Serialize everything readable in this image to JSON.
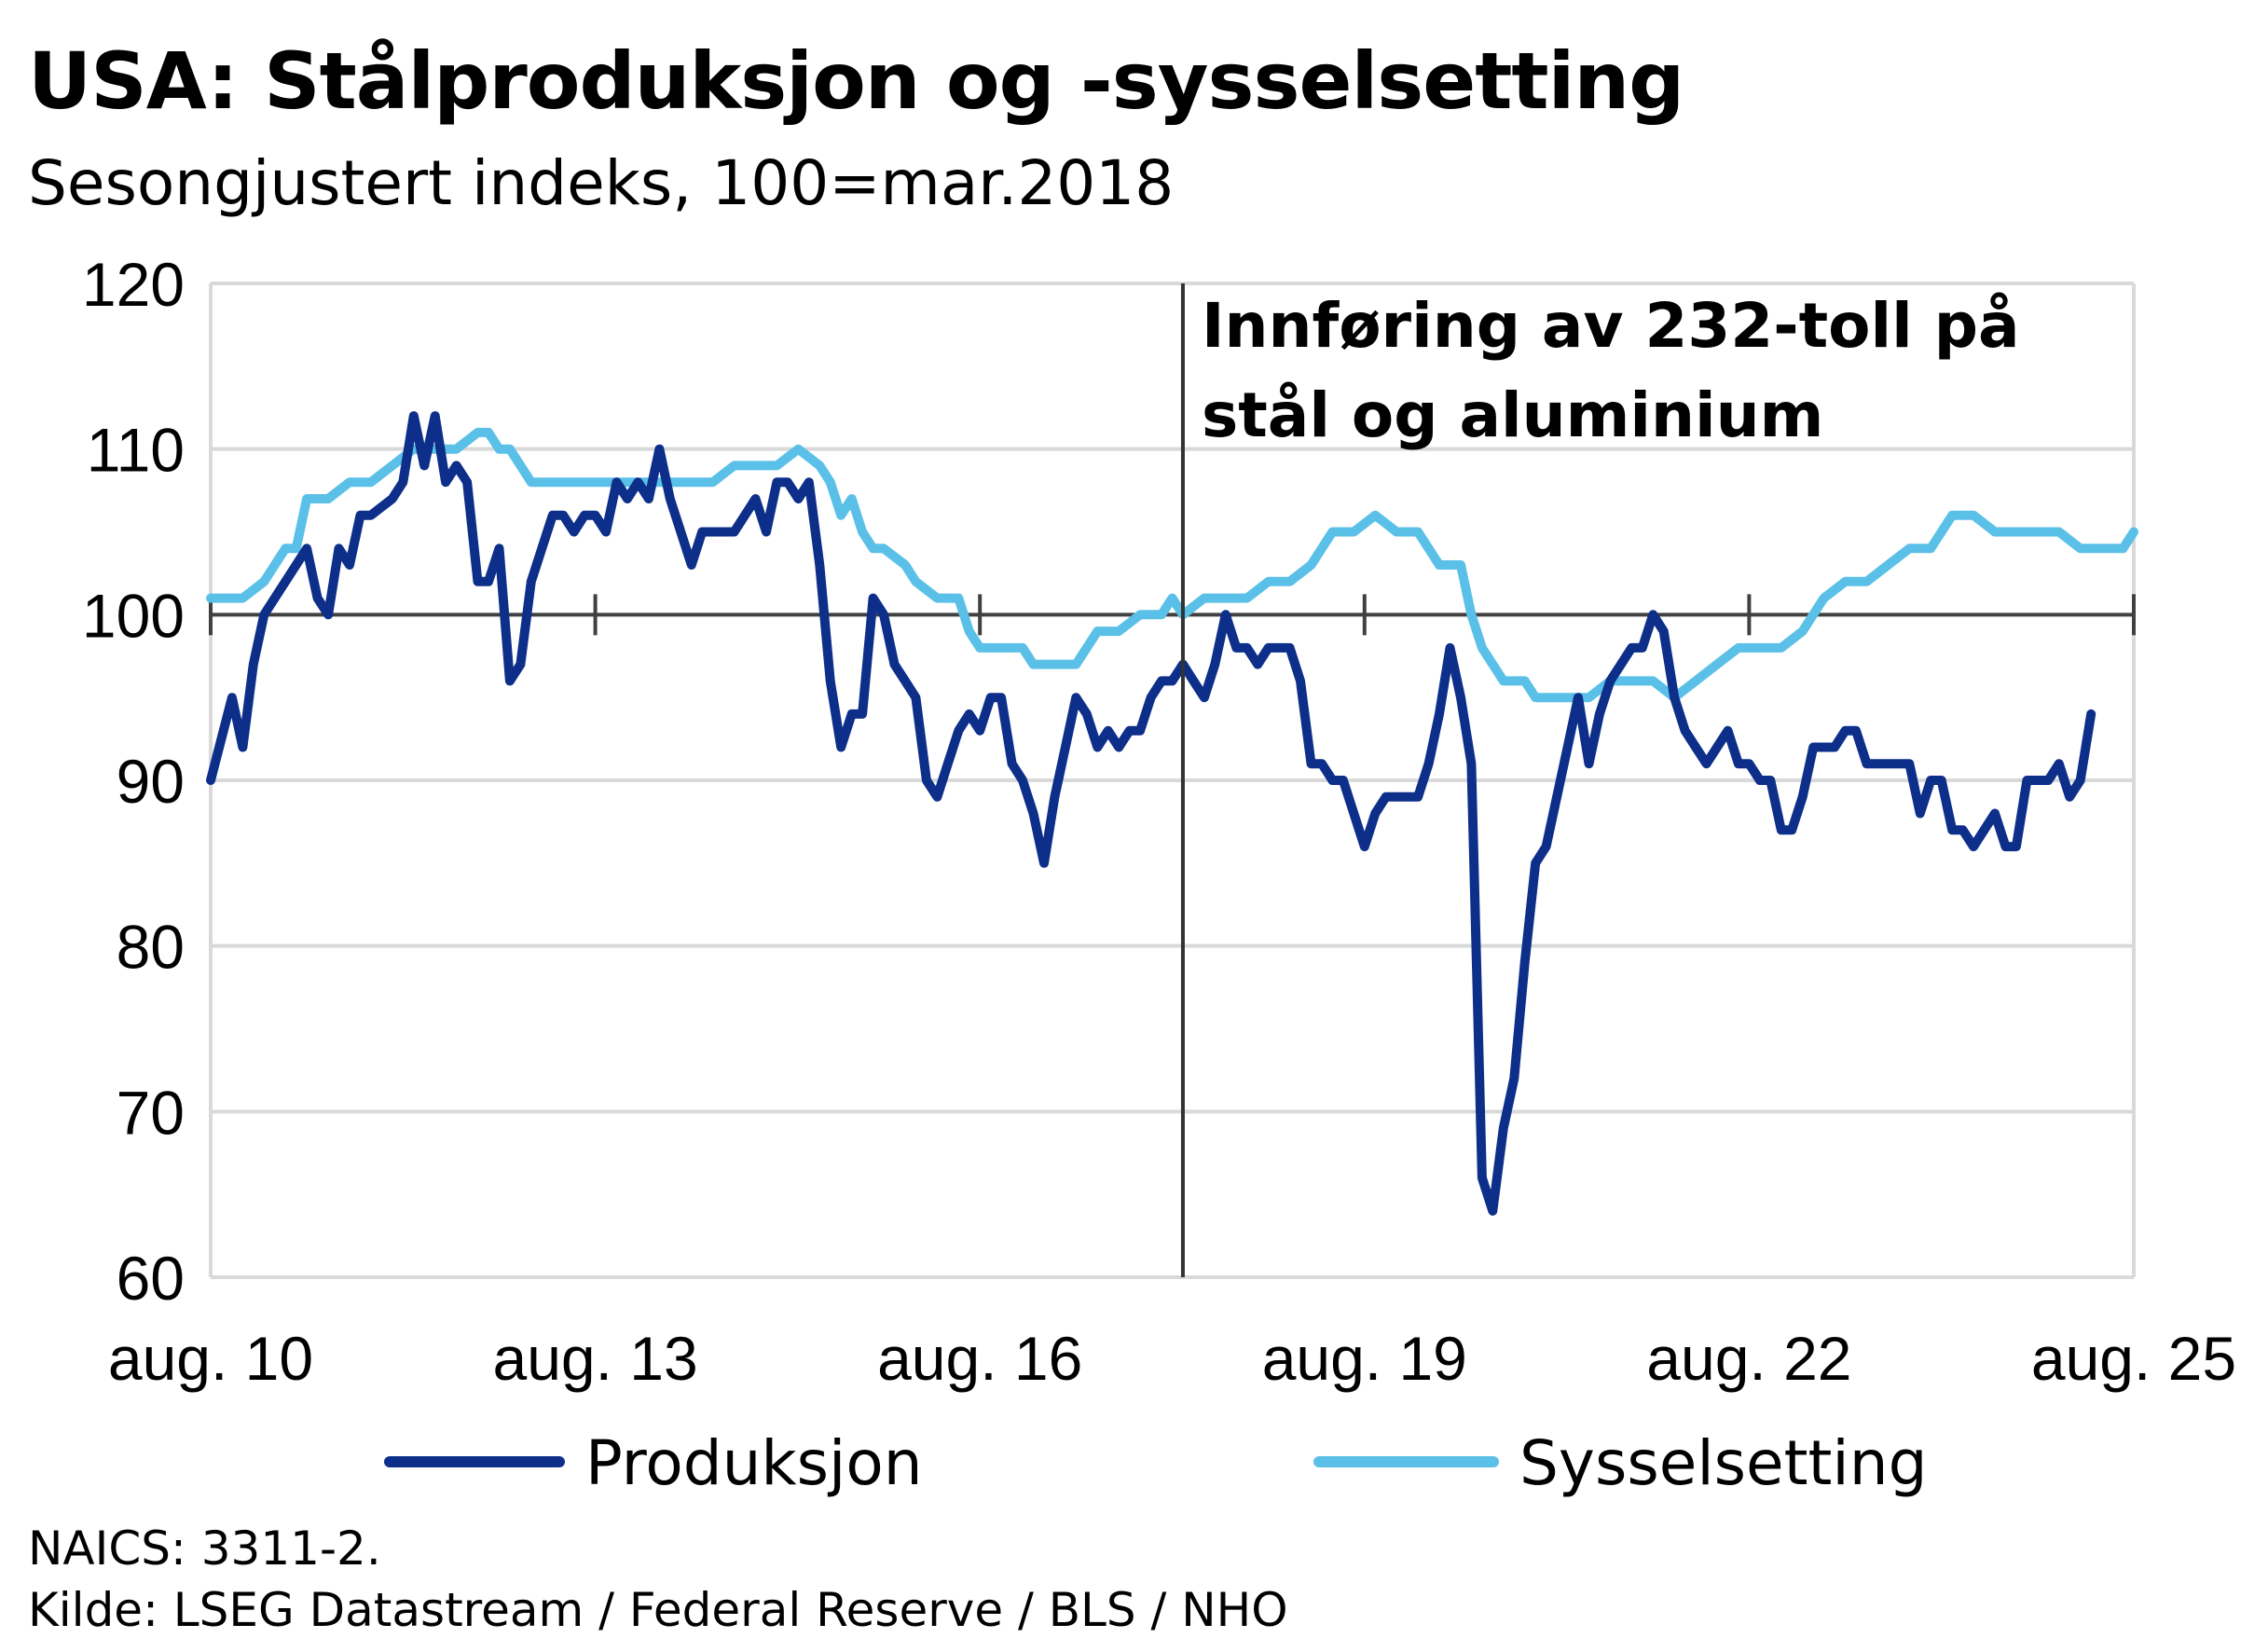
{
  "title": "USA:  Stålproduksjon  og  -sysselsetting",
  "subtitle": "Sesongjustert indeks, 100=mar.2018",
  "footnote": "NAICS: 3311-2.",
  "source": "Kilde: LSEG Datastream / Federal Reserve / BLS / NHO",
  "colors": {
    "produksjon": "#0d2f8a",
    "sysselsetting": "#5bc0e8",
    "grid": "#d9d9d9",
    "axis": "#404040"
  },
  "chart_data": {
    "type": "line",
    "title": "USA:  Stålproduksjon  og  -sysselsetting",
    "subtitle": "Sesongjustert indeks, 100=mar.2018",
    "ylim": [
      60,
      120
    ],
    "yticks": [
      60,
      70,
      80,
      90,
      100,
      110,
      120
    ],
    "xlim": [
      "2010-08",
      "2025-08"
    ],
    "xticks": [
      {
        "date": "2010-08",
        "label": "aug. 10"
      },
      {
        "date": "2013-08",
        "label": "aug. 13"
      },
      {
        "date": "2016-08",
        "label": "aug. 16"
      },
      {
        "date": "2019-08",
        "label": "aug. 19"
      },
      {
        "date": "2022-08",
        "label": "aug. 22"
      },
      {
        "date": "2025-08",
        "label": "aug. 25"
      }
    ],
    "grid": true,
    "legend_position": "bottom",
    "annotation": {
      "date": "2018-03",
      "lines": [
        "Innføring av 232-toll på",
        "stål og aluminium"
      ]
    },
    "series": [
      {
        "name": "Produksjon",
        "color": "#0d2f8a",
        "points": [
          [
            "2010-08",
            90
          ],
          [
            "2010-10",
            95
          ],
          [
            "2010-11",
            92
          ],
          [
            "2010-12",
            97
          ],
          [
            "2011-01",
            100
          ],
          [
            "2011-03",
            102
          ],
          [
            "2011-05",
            104
          ],
          [
            "2011-06",
            101
          ],
          [
            "2011-07",
            100
          ],
          [
            "2011-08",
            104
          ],
          [
            "2011-09",
            103
          ],
          [
            "2011-10",
            106
          ],
          [
            "2011-11",
            106
          ],
          [
            "2012-01",
            107
          ],
          [
            "2012-02",
            108
          ],
          [
            "2012-03",
            112
          ],
          [
            "2012-04",
            109
          ],
          [
            "2012-05",
            112
          ],
          [
            "2012-06",
            108
          ],
          [
            "2012-07",
            109
          ],
          [
            "2012-08",
            108
          ],
          [
            "2012-09",
            102
          ],
          [
            "2012-10",
            102
          ],
          [
            "2012-11",
            104
          ],
          [
            "2012-12",
            96
          ],
          [
            "2013-01",
            97
          ],
          [
            "2013-02",
            102
          ],
          [
            "2013-04",
            106
          ],
          [
            "2013-05",
            106
          ],
          [
            "2013-06",
            105
          ],
          [
            "2013-07",
            106
          ],
          [
            "2013-08",
            106
          ],
          [
            "2013-09",
            105
          ],
          [
            "2013-10",
            108
          ],
          [
            "2013-11",
            107
          ],
          [
            "2013-12",
            108
          ],
          [
            "2014-01",
            107
          ],
          [
            "2014-02",
            110
          ],
          [
            "2014-03",
            107
          ],
          [
            "2014-05",
            103
          ],
          [
            "2014-06",
            105
          ],
          [
            "2014-07",
            105
          ],
          [
            "2014-08",
            105
          ],
          [
            "2014-09",
            105
          ],
          [
            "2014-10",
            106
          ],
          [
            "2014-11",
            107
          ],
          [
            "2014-12",
            105
          ],
          [
            "2015-01",
            108
          ],
          [
            "2015-02",
            108
          ],
          [
            "2015-03",
            107
          ],
          [
            "2015-04",
            108
          ],
          [
            "2015-05",
            103
          ],
          [
            "2015-06",
            96
          ],
          [
            "2015-07",
            92
          ],
          [
            "2015-08",
            94
          ],
          [
            "2015-09",
            94
          ],
          [
            "2015-10",
            101
          ],
          [
            "2015-11",
            100
          ],
          [
            "2015-12",
            97
          ],
          [
            "2016-01",
            96
          ],
          [
            "2016-02",
            95
          ],
          [
            "2016-03",
            90
          ],
          [
            "2016-04",
            89
          ],
          [
            "2016-05",
            91
          ],
          [
            "2016-06",
            93
          ],
          [
            "2016-07",
            94
          ],
          [
            "2016-08",
            93
          ],
          [
            "2016-09",
            95
          ],
          [
            "2016-10",
            95
          ],
          [
            "2016-11",
            91
          ],
          [
            "2016-12",
            90
          ],
          [
            "2017-01",
            88
          ],
          [
            "2017-02",
            85
          ],
          [
            "2017-03",
            89
          ],
          [
            "2017-04",
            92
          ],
          [
            "2017-05",
            95
          ],
          [
            "2017-06",
            94
          ],
          [
            "2017-07",
            92
          ],
          [
            "2017-08",
            93
          ],
          [
            "2017-09",
            92
          ],
          [
            "2017-10",
            93
          ],
          [
            "2017-11",
            93
          ],
          [
            "2017-12",
            95
          ],
          [
            "2018-01",
            96
          ],
          [
            "2018-02",
            96
          ],
          [
            "2018-03",
            97
          ],
          [
            "2018-04",
            96
          ],
          [
            "2018-05",
            95
          ],
          [
            "2018-06",
            97
          ],
          [
            "2018-07",
            100
          ],
          [
            "2018-08",
            98
          ],
          [
            "2018-09",
            98
          ],
          [
            "2018-10",
            97
          ],
          [
            "2018-11",
            98
          ],
          [
            "2018-12",
            98
          ],
          [
            "2019-01",
            98
          ],
          [
            "2019-02",
            96
          ],
          [
            "2019-03",
            91
          ],
          [
            "2019-04",
            91
          ],
          [
            "2019-05",
            90
          ],
          [
            "2019-06",
            90
          ],
          [
            "2019-07",
            88
          ],
          [
            "2019-08",
            86
          ],
          [
            "2019-09",
            88
          ],
          [
            "2019-10",
            89
          ],
          [
            "2019-11",
            89
          ],
          [
            "2019-12",
            89
          ],
          [
            "2020-01",
            89
          ],
          [
            "2020-02",
            91
          ],
          [
            "2020-03",
            94
          ],
          [
            "2020-04",
            98
          ],
          [
            "2020-05",
            95
          ],
          [
            "2020-06",
            91
          ],
          [
            "2020-07",
            66
          ],
          [
            "2020-08",
            64
          ],
          [
            "2020-09",
            69
          ],
          [
            "2020-10",
            72
          ],
          [
            "2020-11",
            79
          ],
          [
            "2020-12",
            85
          ],
          [
            "2021-01",
            86
          ],
          [
            "2021-02",
            89
          ],
          [
            "2021-03",
            92
          ],
          [
            "2021-04",
            95
          ],
          [
            "2021-05",
            91
          ],
          [
            "2021-06",
            94
          ],
          [
            "2021-07",
            96
          ],
          [
            "2021-08",
            97
          ],
          [
            "2021-09",
            98
          ],
          [
            "2021-10",
            98
          ],
          [
            "2021-11",
            100
          ],
          [
            "2021-12",
            99
          ],
          [
            "2022-01",
            95
          ],
          [
            "2022-02",
            93
          ],
          [
            "2022-03",
            92
          ],
          [
            "2022-04",
            91
          ],
          [
            "2022-05",
            92
          ],
          [
            "2022-06",
            93
          ],
          [
            "2022-07",
            91
          ],
          [
            "2022-08",
            91
          ],
          [
            "2022-09",
            90
          ],
          [
            "2022-10",
            90
          ],
          [
            "2022-11",
            87
          ],
          [
            "2022-12",
            87
          ],
          [
            "2023-01",
            89
          ],
          [
            "2023-02",
            92
          ],
          [
            "2023-03",
            92
          ],
          [
            "2023-04",
            92
          ],
          [
            "2023-05",
            93
          ],
          [
            "2023-06",
            93
          ],
          [
            "2023-07",
            91
          ],
          [
            "2023-08",
            91
          ],
          [
            "2023-09",
            91
          ],
          [
            "2023-10",
            91
          ],
          [
            "2023-11",
            91
          ],
          [
            "2023-12",
            88
          ],
          [
            "2024-01",
            90
          ],
          [
            "2024-02",
            90
          ],
          [
            "2024-03",
            87
          ],
          [
            "2024-04",
            87
          ],
          [
            "2024-05",
            86
          ],
          [
            "2024-06",
            87
          ],
          [
            "2024-07",
            88
          ],
          [
            "2024-08",
            86
          ],
          [
            "2024-09",
            86
          ],
          [
            "2024-10",
            90
          ],
          [
            "2024-11",
            90
          ],
          [
            "2024-12",
            90
          ],
          [
            "2025-01",
            91
          ],
          [
            "2025-02",
            89
          ],
          [
            "2025-03",
            90
          ],
          [
            "2025-04",
            94
          ]
        ]
      },
      {
        "name": "Sysselsetting",
        "color": "#5bc0e8",
        "points": [
          [
            "2010-08",
            101
          ],
          [
            "2010-09",
            101
          ],
          [
            "2010-11",
            101
          ],
          [
            "2011-01",
            102
          ],
          [
            "2011-03",
            104
          ],
          [
            "2011-04",
            104
          ],
          [
            "2011-05",
            107
          ],
          [
            "2011-07",
            107
          ],
          [
            "2011-09",
            108
          ],
          [
            "2011-11",
            108
          ],
          [
            "2012-01",
            109
          ],
          [
            "2012-03",
            110
          ],
          [
            "2012-05",
            110
          ],
          [
            "2012-07",
            110
          ],
          [
            "2012-09",
            111
          ],
          [
            "2012-10",
            111
          ],
          [
            "2012-11",
            110
          ],
          [
            "2012-12",
            110
          ],
          [
            "2013-01",
            109
          ],
          [
            "2013-02",
            108
          ],
          [
            "2013-03",
            108
          ],
          [
            "2013-05",
            108
          ],
          [
            "2013-07",
            108
          ],
          [
            "2013-09",
            108
          ],
          [
            "2013-11",
            108
          ],
          [
            "2014-01",
            108
          ],
          [
            "2014-03",
            108
          ],
          [
            "2014-05",
            108
          ],
          [
            "2014-07",
            108
          ],
          [
            "2014-09",
            109
          ],
          [
            "2014-11",
            109
          ],
          [
            "2015-01",
            109
          ],
          [
            "2015-03",
            110
          ],
          [
            "2015-05",
            109
          ],
          [
            "2015-06",
            108
          ],
          [
            "2015-07",
            106
          ],
          [
            "2015-08",
            107
          ],
          [
            "2015-09",
            105
          ],
          [
            "2015-10",
            104
          ],
          [
            "2015-11",
            104
          ],
          [
            "2016-01",
            103
          ],
          [
            "2016-02",
            102
          ],
          [
            "2016-04",
            101
          ],
          [
            "2016-06",
            101
          ],
          [
            "2016-07",
            99
          ],
          [
            "2016-08",
            98
          ],
          [
            "2016-10",
            98
          ],
          [
            "2016-12",
            98
          ],
          [
            "2017-01",
            97
          ],
          [
            "2017-02",
            97
          ],
          [
            "2017-03",
            97
          ],
          [
            "2017-05",
            97
          ],
          [
            "2017-07",
            99
          ],
          [
            "2017-09",
            99
          ],
          [
            "2017-11",
            100
          ],
          [
            "2018-01",
            100
          ],
          [
            "2018-02",
            101
          ],
          [
            "2018-03",
            100
          ],
          [
            "2018-05",
            101
          ],
          [
            "2018-07",
            101
          ],
          [
            "2018-09",
            101
          ],
          [
            "2018-11",
            102
          ],
          [
            "2019-01",
            102
          ],
          [
            "2019-03",
            103
          ],
          [
            "2019-05",
            105
          ],
          [
            "2019-07",
            105
          ],
          [
            "2019-09",
            106
          ],
          [
            "2019-11",
            105
          ],
          [
            "2020-01",
            105
          ],
          [
            "2020-03",
            103
          ],
          [
            "2020-05",
            103
          ],
          [
            "2020-06",
            100
          ],
          [
            "2020-07",
            98
          ],
          [
            "2020-08",
            97
          ],
          [
            "2020-09",
            96
          ],
          [
            "2020-10",
            96
          ],
          [
            "2020-11",
            96
          ],
          [
            "2020-12",
            95
          ],
          [
            "2021-01",
            95
          ],
          [
            "2021-03",
            95
          ],
          [
            "2021-05",
            95
          ],
          [
            "2021-07",
            96
          ],
          [
            "2021-09",
            96
          ],
          [
            "2021-11",
            96
          ],
          [
            "2022-01",
            95
          ],
          [
            "2022-03",
            96
          ],
          [
            "2022-05",
            97
          ],
          [
            "2022-07",
            98
          ],
          [
            "2022-09",
            98
          ],
          [
            "2022-11",
            98
          ],
          [
            "2023-01",
            99
          ],
          [
            "2023-03",
            101
          ],
          [
            "2023-05",
            102
          ],
          [
            "2023-07",
            102
          ],
          [
            "2023-09",
            103
          ],
          [
            "2023-11",
            104
          ],
          [
            "2024-01",
            104
          ],
          [
            "2024-03",
            106
          ],
          [
            "2024-05",
            106
          ],
          [
            "2024-07",
            105
          ],
          [
            "2024-09",
            105
          ],
          [
            "2024-11",
            105
          ],
          [
            "2025-01",
            105
          ],
          [
            "2025-03",
            104
          ],
          [
            "2025-05",
            104
          ],
          [
            "2025-07",
            104
          ],
          [
            "2025-08",
            105
          ]
        ]
      }
    ]
  }
}
